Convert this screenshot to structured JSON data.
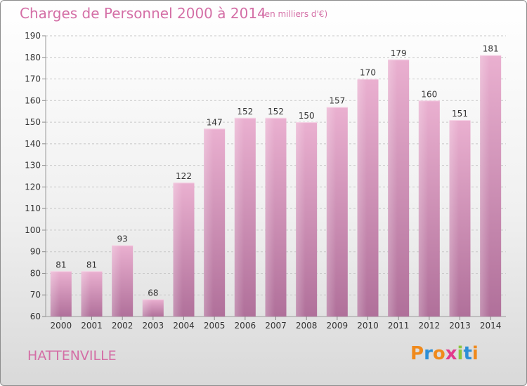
{
  "header": {
    "title": "Charges de Personnel 2000 à 2014",
    "unit": "(en milliers d'€)"
  },
  "footer": {
    "commune": "HATTENVILLE",
    "logo_letters": [
      "P",
      "r",
      "o",
      "x",
      "i",
      "t",
      "i"
    ],
    "logo_colors": [
      "#f08a1c",
      "#2d8fd6",
      "#f08a1c",
      "#e23b8c",
      "#8dc63f",
      "#2d8fd6",
      "#f08a1c"
    ]
  },
  "colors": {
    "bar_light": "#eab0d0",
    "bar_dark": "#b0709a",
    "title": "#d46fa6",
    "grid": "#c8c8c8",
    "text": "#333333"
  },
  "chart_data": {
    "type": "bar",
    "title": "Charges de Personnel 2000 à 2014",
    "subtitle": "(en milliers d'€)",
    "categories": [
      "2000",
      "2001",
      "2002",
      "2003",
      "2004",
      "2005",
      "2006",
      "2007",
      "2008",
      "2009",
      "2010",
      "2011",
      "2012",
      "2013",
      "2014"
    ],
    "values": [
      81,
      81,
      93,
      68,
      122,
      147,
      152,
      152,
      150,
      157,
      170,
      179,
      160,
      151,
      181
    ],
    "ylim": [
      60,
      190
    ],
    "yticks": [
      60,
      70,
      80,
      90,
      100,
      110,
      120,
      130,
      140,
      150,
      160,
      170,
      180,
      190
    ],
    "grid": "horizontal dashed",
    "legend": "none"
  }
}
